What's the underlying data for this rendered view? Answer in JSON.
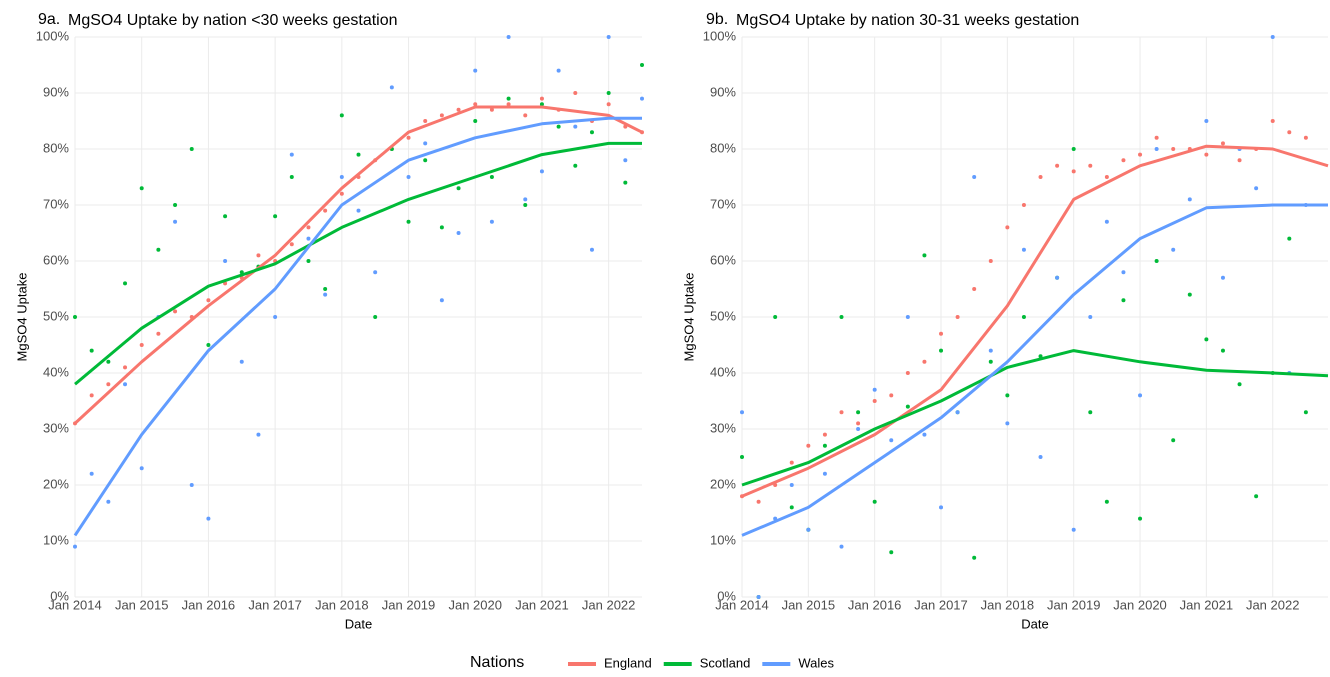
{
  "chart_data": [
    {
      "type": "scatter",
      "label": "9a.",
      "title": "MgSO4 Uptake by nation <30 weeks gestation",
      "x_label": "Date",
      "y_label": "MgSO4 Uptake",
      "legend_title": "Nations",
      "legend_position": "bottom",
      "xlim": [
        "2014-01",
        "2022-07"
      ],
      "xticks": [
        {
          "value": "2014-01",
          "label": "Jan 2014"
        },
        {
          "value": "2015-01",
          "label": "Jan 2015"
        },
        {
          "value": "2016-01",
          "label": "Jan 2016"
        },
        {
          "value": "2017-01",
          "label": "Jan 2017"
        },
        {
          "value": "2018-01",
          "label": "Jan 2018"
        },
        {
          "value": "2019-01",
          "label": "Jan 2019"
        },
        {
          "value": "2020-01",
          "label": "Jan 2020"
        },
        {
          "value": "2021-01",
          "label": "Jan 2021"
        },
        {
          "value": "2022-01",
          "label": "Jan 2022"
        }
      ],
      "ylim": [
        0,
        100
      ],
      "yticks": [
        {
          "value": 0,
          "label": "0%"
        },
        {
          "value": 10,
          "label": "10%"
        },
        {
          "value": 20,
          "label": "20%"
        },
        {
          "value": 30,
          "label": "30%"
        },
        {
          "value": 40,
          "label": "40%"
        },
        {
          "value": 50,
          "label": "50%"
        },
        {
          "value": 60,
          "label": "60%"
        },
        {
          "value": 70,
          "label": "70%"
        },
        {
          "value": 80,
          "label": "80%"
        },
        {
          "value": 90,
          "label": "90%"
        },
        {
          "value": 100,
          "label": "100%"
        }
      ],
      "grid": true,
      "x": [
        "2014-01",
        "2014-04",
        "2014-07",
        "2014-10",
        "2015-01",
        "2015-04",
        "2015-07",
        "2015-10",
        "2016-01",
        "2016-04",
        "2016-07",
        "2016-10",
        "2017-01",
        "2017-04",
        "2017-07",
        "2017-10",
        "2018-01",
        "2018-04",
        "2018-07",
        "2018-10",
        "2019-01",
        "2019-04",
        "2019-07",
        "2019-10",
        "2020-01",
        "2020-04",
        "2020-07",
        "2020-10",
        "2021-01",
        "2021-04",
        "2021-07",
        "2021-10",
        "2022-01",
        "2022-04",
        "2022-07"
      ],
      "trend_x": [
        "2014-01",
        "2015-01",
        "2016-01",
        "2017-01",
        "2018-01",
        "2019-01",
        "2020-01",
        "2021-01",
        "2022-01",
        "2022-07"
      ],
      "series": [
        {
          "name": "England",
          "color": "#F8766D",
          "values": [
            31,
            36,
            38,
            41,
            45,
            47,
            51,
            50,
            53,
            56,
            57,
            61,
            60,
            63,
            66,
            69,
            72,
            75,
            78,
            80,
            82,
            85,
            86,
            87,
            88,
            87,
            88,
            86,
            89,
            87,
            90,
            85,
            88,
            84,
            83
          ],
          "trend": [
            31,
            42,
            52,
            61,
            73,
            83,
            87.5,
            87.5,
            86,
            83
          ]
        },
        {
          "name": "Scotland",
          "color": "#00BA38",
          "values": [
            50,
            44,
            42,
            56,
            73,
            62,
            70,
            80,
            45,
            68,
            58,
            59,
            68,
            75,
            60,
            55,
            86,
            79,
            50,
            80,
            67,
            78,
            66,
            73,
            85,
            75,
            89,
            70,
            88,
            84,
            77,
            83,
            90,
            74,
            95
          ],
          "trend": [
            38,
            48,
            55.5,
            59.5,
            66,
            71,
            75,
            79,
            81,
            81
          ]
        },
        {
          "name": "Wales",
          "color": "#619CFF",
          "values": [
            9,
            22,
            17,
            38,
            23,
            50,
            67,
            20,
            14,
            60,
            42,
            29,
            50,
            79,
            64,
            54,
            75,
            69,
            58,
            91,
            75,
            81,
            53,
            65,
            94,
            67,
            100,
            71,
            76,
            94,
            84,
            62,
            100,
            78,
            89
          ],
          "trend": [
            11,
            29,
            44,
            55,
            70,
            78,
            82,
            84.5,
            85.5,
            85.5
          ]
        }
      ]
    },
    {
      "type": "scatter",
      "label": "9b.",
      "title": "MgSO4 Uptake by nation 30-31 weeks gestation",
      "x_label": "Date",
      "y_label": "MgSO4 Uptake",
      "xlim": [
        "2014-01",
        "2022-11"
      ],
      "xticks": [
        {
          "value": "2014-01",
          "label": "Jan 2014"
        },
        {
          "value": "2015-01",
          "label": "Jan 2015"
        },
        {
          "value": "2016-01",
          "label": "Jan 2016"
        },
        {
          "value": "2017-01",
          "label": "Jan 2017"
        },
        {
          "value": "2018-01",
          "label": "Jan 2018"
        },
        {
          "value": "2019-01",
          "label": "Jan 2019"
        },
        {
          "value": "2020-01",
          "label": "Jan 2020"
        },
        {
          "value": "2021-01",
          "label": "Jan 2021"
        },
        {
          "value": "2022-01",
          "label": "Jan 2022"
        }
      ],
      "ylim": [
        0,
        100
      ],
      "yticks": [
        {
          "value": 0,
          "label": "0%"
        },
        {
          "value": 10,
          "label": "10%"
        },
        {
          "value": 20,
          "label": "20%"
        },
        {
          "value": 30,
          "label": "30%"
        },
        {
          "value": 40,
          "label": "40%"
        },
        {
          "value": 50,
          "label": "50%"
        },
        {
          "value": 60,
          "label": "60%"
        },
        {
          "value": 70,
          "label": "70%"
        },
        {
          "value": 80,
          "label": "80%"
        },
        {
          "value": 90,
          "label": "90%"
        },
        {
          "value": 100,
          "label": "100%"
        }
      ],
      "grid": true,
      "x": [
        "2014-01",
        "2014-04",
        "2014-07",
        "2014-10",
        "2015-01",
        "2015-04",
        "2015-07",
        "2015-10",
        "2016-01",
        "2016-04",
        "2016-07",
        "2016-10",
        "2017-01",
        "2017-04",
        "2017-07",
        "2017-10",
        "2018-01",
        "2018-04",
        "2018-07",
        "2018-10",
        "2019-01",
        "2019-04",
        "2019-07",
        "2019-10",
        "2020-01",
        "2020-04",
        "2020-07",
        "2020-10",
        "2021-01",
        "2021-04",
        "2021-07",
        "2021-10",
        "2022-01",
        "2022-04",
        "2022-07"
      ],
      "trend_x": [
        "2014-01",
        "2015-01",
        "2016-01",
        "2017-01",
        "2018-01",
        "2019-01",
        "2020-01",
        "2021-01",
        "2022-01",
        "2022-11"
      ],
      "series": [
        {
          "color": "#F8766D",
          "values": [
            18,
            17,
            20,
            24,
            27,
            29,
            33,
            31,
            35,
            36,
            40,
            42,
            47,
            50,
            55,
            60,
            66,
            70,
            75,
            77,
            76,
            77,
            75,
            78,
            79,
            82,
            80,
            80,
            79,
            81,
            78,
            80,
            85,
            83,
            82
          ],
          "trend": [
            18,
            23,
            29,
            37,
            52,
            71,
            77,
            80.5,
            80,
            77
          ]
        },
        {
          "color": "#00BA38",
          "values": [
            25,
            0,
            50,
            16,
            12,
            27,
            50,
            33,
            17,
            8,
            34,
            61,
            44,
            33,
            7,
            42,
            36,
            50,
            43,
            57,
            80,
            33,
            17,
            53,
            14,
            60,
            28,
            54,
            46,
            44,
            38,
            18,
            40,
            64,
            33
          ],
          "trend": [
            20,
            24,
            30,
            35,
            41,
            44,
            42,
            40.5,
            40,
            39.5
          ]
        },
        {
          "color": "#619CFF",
          "values": [
            33,
            0,
            14,
            20,
            12,
            22,
            9,
            30,
            37,
            28,
            50,
            29,
            16,
            33,
            75,
            44,
            31,
            62,
            25,
            57,
            12,
            50,
            67,
            58,
            36,
            80,
            62,
            71,
            85,
            57,
            80,
            73,
            100,
            40,
            70
          ],
          "trend": [
            11,
            16,
            24,
            32,
            42,
            54,
            64,
            69.5,
            70,
            70
          ]
        }
      ]
    }
  ]
}
